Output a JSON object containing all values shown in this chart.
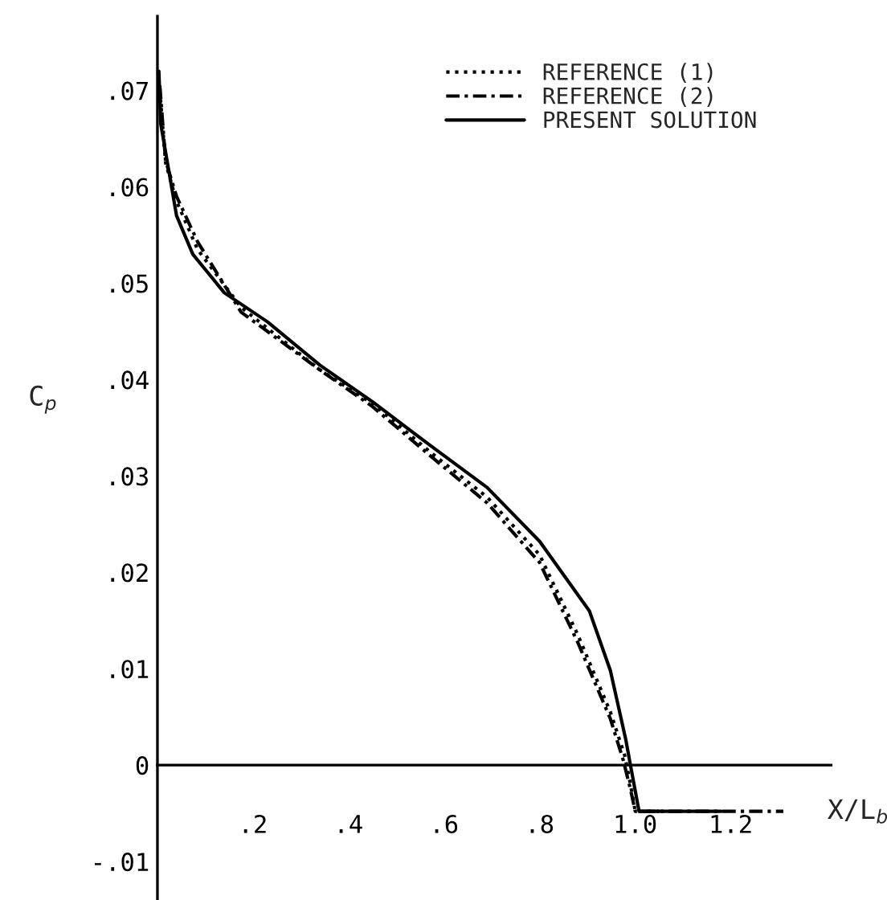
{
  "chart_data": {
    "type": "line",
    "xlabel": "X/L$_{b}$",
    "ylabel": "C$_{p}$",
    "xlim": [
      0,
      1.41
    ],
    "ylim": [
      -0.014,
      0.0777
    ],
    "xticks": [
      {
        "value": 0.2,
        "label": ".2"
      },
      {
        "value": 0.4,
        "label": ".4"
      },
      {
        "value": 0.6,
        "label": ".6"
      },
      {
        "value": 0.8,
        "label": ".8"
      },
      {
        "value": 1.0,
        "label": "1.0"
      },
      {
        "value": 1.2,
        "label": "1.2"
      }
    ],
    "yticks": [
      {
        "value": -0.01,
        "label": "-.01"
      },
      0,
      {
        "value": 0.01,
        "label": ".01"
      },
      {
        "value": 0.02,
        "label": ".02"
      },
      {
        "value": 0.03,
        "label": ".03"
      },
      {
        "value": 0.04,
        "label": ".04"
      },
      {
        "value": 0.05,
        "label": ".05"
      },
      {
        "value": 0.06,
        "label": ".06"
      },
      {
        "value": 0.07,
        "label": ".07"
      }
    ],
    "grid": false,
    "legend": "top right",
    "marker": "none",
    "series": [
      {
        "name": "REFERENCE (1)",
        "color": "#000000",
        "line_style": "dotted",
        "x": [
          0.005,
          0.017,
          0.04,
          0.084,
          0.175,
          0.34,
          0.45,
          0.578,
          0.69,
          0.8,
          0.88,
          0.948,
          0.978,
          0.99,
          1.0,
          1.05
        ],
        "values": [
          0.07,
          0.0625,
          0.0585,
          0.0535,
          0.0475,
          0.041,
          0.0375,
          0.0322,
          0.0278,
          0.0218,
          0.0135,
          0.0055,
          0.001,
          -0.002,
          -0.0048,
          -0.0048
        ]
      },
      {
        "name": "REFERENCE (2)",
        "color": "#000000",
        "line_style": "dashed",
        "x": [
          0.005,
          0.017,
          0.04,
          0.084,
          0.175,
          0.34,
          0.45,
          0.578,
          0.69,
          0.8,
          0.88,
          0.948,
          0.975,
          0.99,
          1.0,
          1.31
        ],
        "values": [
          0.0705,
          0.0627,
          0.059,
          0.0543,
          0.047,
          0.041,
          0.0372,
          0.0318,
          0.0272,
          0.021,
          0.0127,
          0.0048,
          0.0005,
          -0.0025,
          -0.0048,
          -0.0048
        ]
      },
      {
        "name": "PRESENT SOLUTION",
        "color": "#000000",
        "line_style": "solid",
        "x": [
          0.003,
          0.007,
          0.04,
          0.074,
          0.14,
          0.23,
          0.34,
          0.45,
          0.57,
          0.69,
          0.8,
          0.904,
          0.948,
          0.98,
          0.99,
          1.008,
          1.18
        ],
        "values": [
          0.072,
          0.0665,
          0.057,
          0.053,
          0.049,
          0.046,
          0.0415,
          0.0377,
          0.0332,
          0.0288,
          0.0232,
          0.016,
          0.0098,
          0.0027,
          0.0,
          -0.0048,
          -0.0048
        ]
      }
    ]
  }
}
